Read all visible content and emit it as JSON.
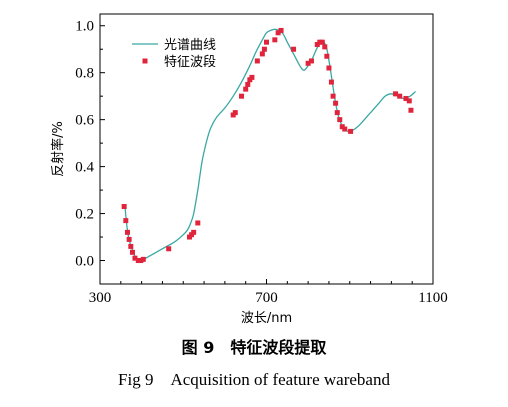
{
  "chart_data": {
    "type": "line",
    "xlabel": "波长/nm",
    "ylabel": "反射率/%",
    "xlim": [
      300,
      1100
    ],
    "ylim": [
      -0.1,
      1.05
    ],
    "x_ticks": [
      300,
      700,
      1100
    ],
    "y_ticks": [
      0.0,
      0.2,
      0.4,
      0.6,
      0.8,
      1.0
    ],
    "x_tick_labels": [
      "300",
      "700",
      "1100"
    ],
    "y_tick_labels": [
      "0.0",
      "0.2",
      "0.4",
      "0.6",
      "0.8",
      "1.0"
    ],
    "legend_position": "top-left",
    "series": [
      {
        "name": "光谱曲线",
        "kind": "line",
        "color": "#3aa8a3",
        "x": [
          360,
          365,
          370,
          375,
          380,
          385,
          390,
          395,
          400,
          405,
          410,
          420,
          430,
          440,
          460,
          480,
          500,
          510,
          518,
          525,
          535,
          545,
          555,
          565,
          580,
          600,
          620,
          640,
          660,
          675,
          690,
          700,
          710,
          720,
          730,
          740,
          750,
          765,
          780,
          790,
          800,
          810,
          820,
          830,
          838,
          845,
          852,
          858,
          865,
          872,
          880,
          888,
          895,
          902,
          912,
          925,
          950,
          970,
          985,
          1000,
          1015,
          1030,
          1045,
          1058
        ],
        "y": [
          0.23,
          0.14,
          0.09,
          0.06,
          0.035,
          0.015,
          0.005,
          0.0,
          0.0,
          0.005,
          0.01,
          0.02,
          0.03,
          0.04,
          0.06,
          0.08,
          0.11,
          0.13,
          0.16,
          0.2,
          0.3,
          0.42,
          0.5,
          0.56,
          0.61,
          0.65,
          0.7,
          0.76,
          0.83,
          0.89,
          0.94,
          0.97,
          0.98,
          0.985,
          0.98,
          0.965,
          0.93,
          0.88,
          0.83,
          0.81,
          0.83,
          0.86,
          0.9,
          0.93,
          0.93,
          0.9,
          0.83,
          0.76,
          0.68,
          0.62,
          0.58,
          0.56,
          0.55,
          0.55,
          0.56,
          0.58,
          0.63,
          0.67,
          0.7,
          0.71,
          0.7,
          0.69,
          0.7,
          0.72
        ]
      },
      {
        "name": "特征波段",
        "kind": "scatter",
        "color": "#e0243c",
        "x": [
          358,
          362,
          366,
          370,
          374,
          378,
          384,
          392,
          398,
          404,
          465,
          515,
          520,
          525,
          535,
          620,
          625,
          640,
          650,
          655,
          660,
          665,
          678,
          690,
          695,
          700,
          720,
          728,
          735,
          765,
          800,
          808,
          822,
          828,
          834,
          840,
          845,
          850,
          856,
          860,
          866,
          870,
          876,
          882,
          888,
          902,
          1010,
          1020,
          1035,
          1043,
          1047
        ],
        "y": [
          0.23,
          0.17,
          0.12,
          0.09,
          0.06,
          0.035,
          0.01,
          0.0,
          0.0,
          0.005,
          0.05,
          0.1,
          0.11,
          0.12,
          0.16,
          0.62,
          0.63,
          0.7,
          0.73,
          0.75,
          0.77,
          0.78,
          0.85,
          0.88,
          0.9,
          0.93,
          0.94,
          0.97,
          0.98,
          0.9,
          0.84,
          0.85,
          0.92,
          0.93,
          0.93,
          0.91,
          0.87,
          0.82,
          0.76,
          0.7,
          0.67,
          0.63,
          0.6,
          0.57,
          0.56,
          0.55,
          0.71,
          0.7,
          0.69,
          0.68,
          0.64
        ]
      }
    ]
  },
  "caption": {
    "cn": "图 9　特征波段提取",
    "en": "Fig 9　Acquisition of feature wareband"
  }
}
